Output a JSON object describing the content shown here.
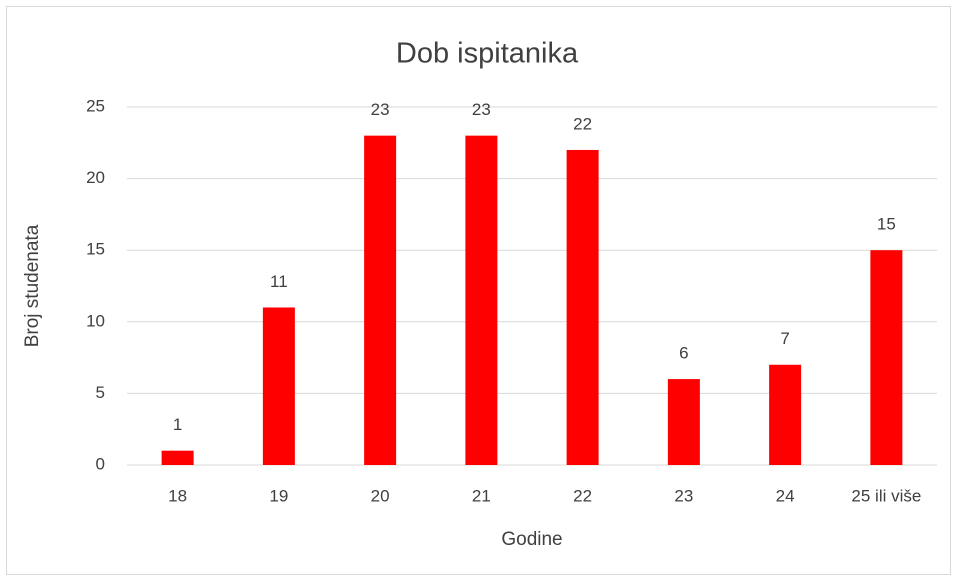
{
  "chart_data": {
    "type": "bar",
    "title": "Dob ispitanika",
    "x_label": "Godine",
    "y_label": "Broj studenata",
    "categories": [
      "18",
      "19",
      "20",
      "21",
      "22",
      "23",
      "24",
      "25 ili više"
    ],
    "values": [
      1,
      11,
      23,
      23,
      22,
      6,
      7,
      15
    ],
    "color": "#ff0000",
    "ylim": [
      0,
      25
    ],
    "yticks": [
      0,
      5,
      10,
      15,
      20,
      25
    ],
    "grid": true
  }
}
